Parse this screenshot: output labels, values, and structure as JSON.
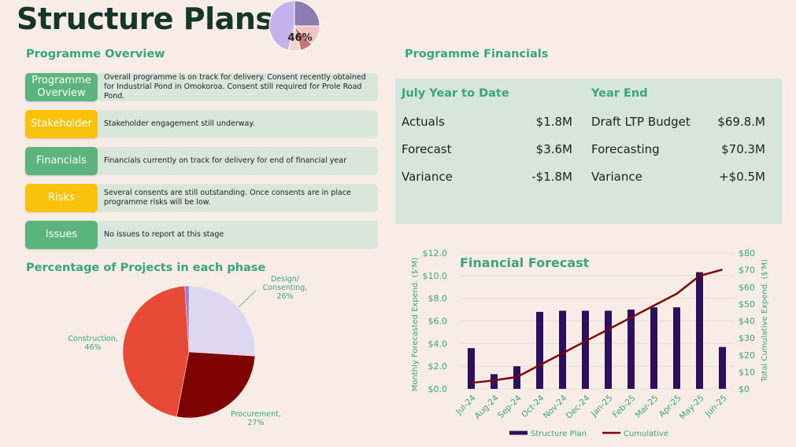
{
  "title": "Structure Plans",
  "progress_pie": {
    "label": "46%",
    "value": 46
  },
  "overview": {
    "heading": "Programme Overview",
    "rows": [
      {
        "label": "Programme Overview",
        "status_color": "#5cb57c",
        "text": "Overall programme is on track for delivery.  Consent recently obtained for Industrial Pond in Omokoroa.  Consent still required for Prole Road Pond."
      },
      {
        "label": "Stakeholder",
        "status_color": "#fbc20b",
        "text": "Stakeholder engagement still underway."
      },
      {
        "label": "Financials",
        "status_color": "#5cb57c",
        "text": "Financials currently on track for delivery for end of financial year"
      },
      {
        "label": "Risks",
        "status_color": "#fbc20b",
        "text": "Several consents are still outstanding.  Once consents are in place programme risks will be low."
      },
      {
        "label": "Issues",
        "status_color": "#5cb57c",
        "text": "No issues to report at this stage"
      }
    ]
  },
  "financials": {
    "heading": "Programme Financials",
    "ytd": {
      "heading": "July Year to Date",
      "rows": [
        {
          "label": "Actuals",
          "value": "$1.8M"
        },
        {
          "label": "Forecast",
          "value": "$3.6M"
        },
        {
          "label": "Variance",
          "value": "-$1.8M"
        }
      ]
    },
    "year_end": {
      "heading": "Year End",
      "rows": [
        {
          "label": "Draft LTP Budget",
          "value": "$69.8.M"
        },
        {
          "label": "Forecasting",
          "value": "$70.3M"
        },
        {
          "label": "Variance",
          "value": "+$0.5M"
        }
      ]
    }
  },
  "chart_data": [
    {
      "type": "pie",
      "title": "Percentage of Projects in each phase",
      "slices": [
        {
          "label": "Design/ Consenting, 26%",
          "value": 26,
          "color": "#ddd7f1"
        },
        {
          "label": "Procurement, 27%",
          "value": 27,
          "color": "#7f0202"
        },
        {
          "label": "Construction, 46%",
          "value": 46,
          "color": "#e84a38"
        },
        {
          "label": "",
          "value": 1,
          "color": "#9b7ad4"
        }
      ]
    },
    {
      "type": "bar",
      "title": "Financial Forecast",
      "categories": [
        "Jul-24",
        "Aug-24",
        "Sep-24",
        "Oct-24",
        "Nov-24",
        "Dec-24",
        "Jan-25",
        "Feb-25",
        "Mar-25",
        "Apr-25",
        "May-25",
        "Jun-25"
      ],
      "series": [
        {
          "name": "Structure Plan",
          "type": "bar",
          "axis": "left",
          "color": "#2d0f5e",
          "values": [
            3.6,
            1.3,
            2.0,
            6.8,
            6.9,
            6.9,
            6.9,
            7.0,
            7.2,
            7.2,
            10.3,
            3.7
          ]
        },
        {
          "name": "Cumulative",
          "type": "line",
          "axis": "right",
          "color": "#7f0202",
          "values": [
            3.5,
            5.0,
            7.0,
            14.0,
            21.0,
            28.0,
            35.0,
            42.0,
            49.0,
            56.0,
            66.5,
            70.2
          ]
        }
      ],
      "ylabel": "Monthly Forecasted Expend. ($'M)",
      "ylabel_right": "Total Cumulative Expend. ($'M)",
      "ylim": [
        0,
        12
      ],
      "ylim_right": [
        0,
        80
      ],
      "yticks": [
        "$0.0",
        "$2.0",
        "$4.0",
        "$6.0",
        "$8.0",
        "$10.0",
        "$12.0"
      ],
      "yticks_right": [
        "$0",
        "$10",
        "$20",
        "$30",
        "$40",
        "$50",
        "$60",
        "$70",
        "$80"
      ],
      "grid": true,
      "legend": "bottom"
    }
  ]
}
